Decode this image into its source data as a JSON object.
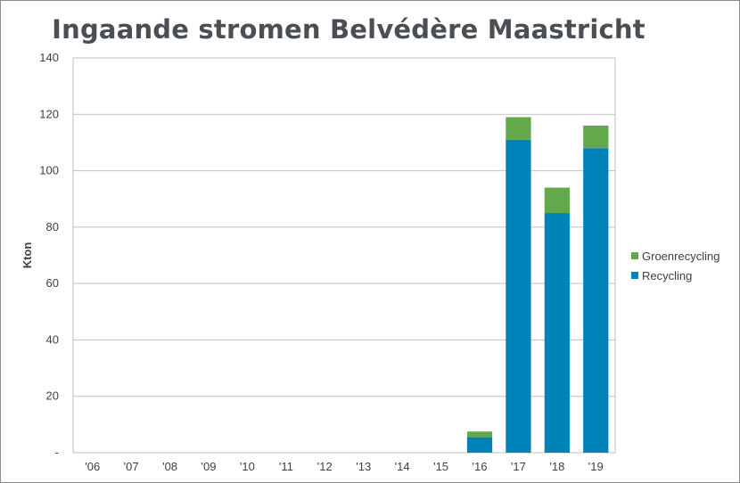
{
  "chart_data": {
    "type": "bar",
    "stacked": true,
    "title": "Ingaande stromen Belvédère Maastricht",
    "ylabel": "Kton",
    "xlabel": "",
    "ylim": [
      0,
      140
    ],
    "yticks": [
      0,
      20,
      40,
      60,
      80,
      100,
      120,
      140
    ],
    "ytick_labels": [
      "-",
      "20",
      "40",
      "60",
      "80",
      "100",
      "120",
      "140"
    ],
    "categories": [
      "'06",
      "'07",
      "'08",
      "'09",
      "'10",
      "'11",
      "'12",
      "'13",
      "'14",
      "'15",
      "'16",
      "'17",
      "'18",
      "'19"
    ],
    "series": [
      {
        "name": "Recycling",
        "color": "#0083b9",
        "values": [
          0,
          0,
          0,
          0,
          0,
          0,
          0,
          0,
          0,
          0,
          5.5,
          111,
          85,
          108
        ]
      },
      {
        "name": "Groenrecycling",
        "color": "#63a94b",
        "values": [
          0,
          0,
          0,
          0,
          0,
          0,
          0,
          0,
          0,
          0,
          2,
          8,
          9,
          8
        ]
      }
    ],
    "legend_order": [
      "Groenrecycling",
      "Recycling"
    ],
    "legend_position": "right",
    "grid": true,
    "gridline_color": "#bfbfbf"
  }
}
